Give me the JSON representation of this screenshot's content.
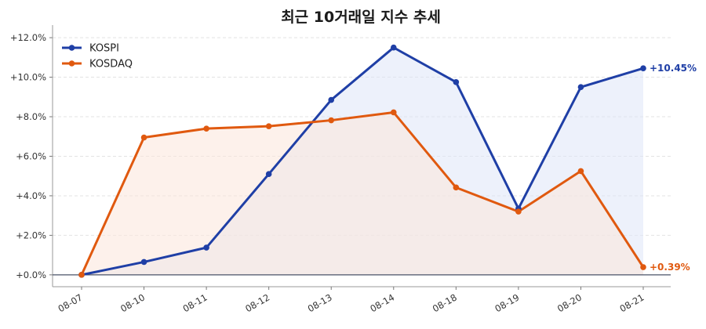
{
  "chart_data": {
    "type": "line",
    "title": "최근 10거래일 지수 추세",
    "xlabel": "",
    "ylabel": "",
    "categories": [
      "08-07",
      "08-10",
      "08-11",
      "08-12",
      "08-13",
      "08-14",
      "08-18",
      "08-19",
      "08-20",
      "08-21"
    ],
    "ylim": [
      -0.6,
      12.4
    ],
    "yticks": [
      0,
      2,
      4,
      6,
      8,
      10,
      12
    ],
    "ytick_labels": [
      "+0.0%",
      "+2.0%",
      "+4.0%",
      "+6.0%",
      "+8.0%",
      "+10.0%",
      "+12.0%"
    ],
    "grid": true,
    "legend_position": "top-left",
    "series": [
      {
        "name": "KOSPI",
        "color": "#1f3fa6",
        "fill": "#dfe6f7",
        "values": [
          0.0,
          0.65,
          1.38,
          5.1,
          8.85,
          11.5,
          9.75,
          3.35,
          9.5,
          10.45
        ],
        "end_label": "+10.45%"
      },
      {
        "name": "KOSDAQ",
        "color": "#e0590f",
        "fill": "#fbe6da",
        "values": [
          0.0,
          6.95,
          7.4,
          7.52,
          7.82,
          8.22,
          4.42,
          3.2,
          5.25,
          0.39
        ],
        "end_label": "+0.39%"
      }
    ]
  }
}
